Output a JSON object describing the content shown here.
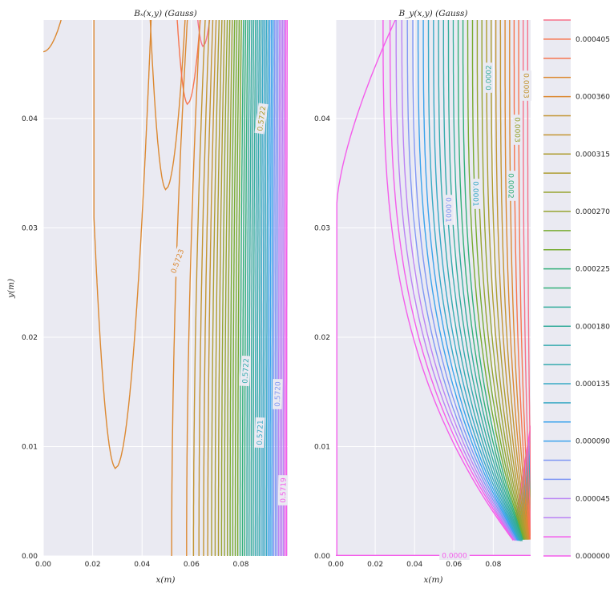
{
  "chart_data": [
    {
      "type": "contour",
      "title": "Bₓ(x,y) (Gauss)",
      "xlabel": "x(m)",
      "ylabel": "y(m)",
      "xlim": [
        0,
        0.099
      ],
      "ylim": [
        0,
        0.049
      ],
      "xticks": [
        "0.00",
        "0.02",
        "0.04",
        "0.06",
        "0.08"
      ],
      "yticks": [
        "0.00",
        "0.01",
        "0.02",
        "0.03",
        "0.04"
      ],
      "contour_labels": [
        "0.5723",
        "0.5722",
        "0.5722",
        "0.5721",
        "0.5720",
        "0.5719"
      ],
      "grid": true
    },
    {
      "type": "contour",
      "title": "B_y(x,y) (Gauss)",
      "xlabel": "x(m)",
      "xlim": [
        0,
        0.099
      ],
      "ylim": [
        0,
        0.049
      ],
      "xticks": [
        "0.00",
        "0.02",
        "0.04",
        "0.06",
        "0.08"
      ],
      "yticks": [
        "0.00",
        "0.01",
        "0.02",
        "0.03",
        "0.04"
      ],
      "contour_labels": [
        "0.0000",
        "0.0001",
        "0.0001",
        "0.0002",
        "0.0002",
        "0.0003",
        "0.0003",
        "0.0002"
      ],
      "grid": true,
      "colorbar": {
        "levels": [
          0,
          1.5e-05,
          3e-05,
          4.5e-05,
          6e-05,
          7.5e-05,
          9e-05,
          0.000105,
          0.00012,
          0.000135,
          0.00015,
          0.000165,
          0.00018,
          0.000195,
          0.00021,
          0.000225,
          0.00024,
          0.000255,
          0.00027,
          0.000285,
          0.0003,
          0.000315,
          0.00033,
          0.000345,
          0.00036,
          0.000375,
          0.00039,
          0.000405,
          0.00042
        ],
        "tick_labels": [
          "0.000000",
          "0.000045",
          "0.000090",
          "0.000135",
          "0.000180",
          "0.000225",
          "0.000270",
          "0.000315",
          "0.000360",
          "0.000405"
        ],
        "tick_levels": [
          0,
          4.5e-05,
          9e-05,
          0.000135,
          0.00018,
          0.000225,
          0.00027,
          0.000315,
          0.00036,
          0.000405
        ]
      }
    }
  ]
}
